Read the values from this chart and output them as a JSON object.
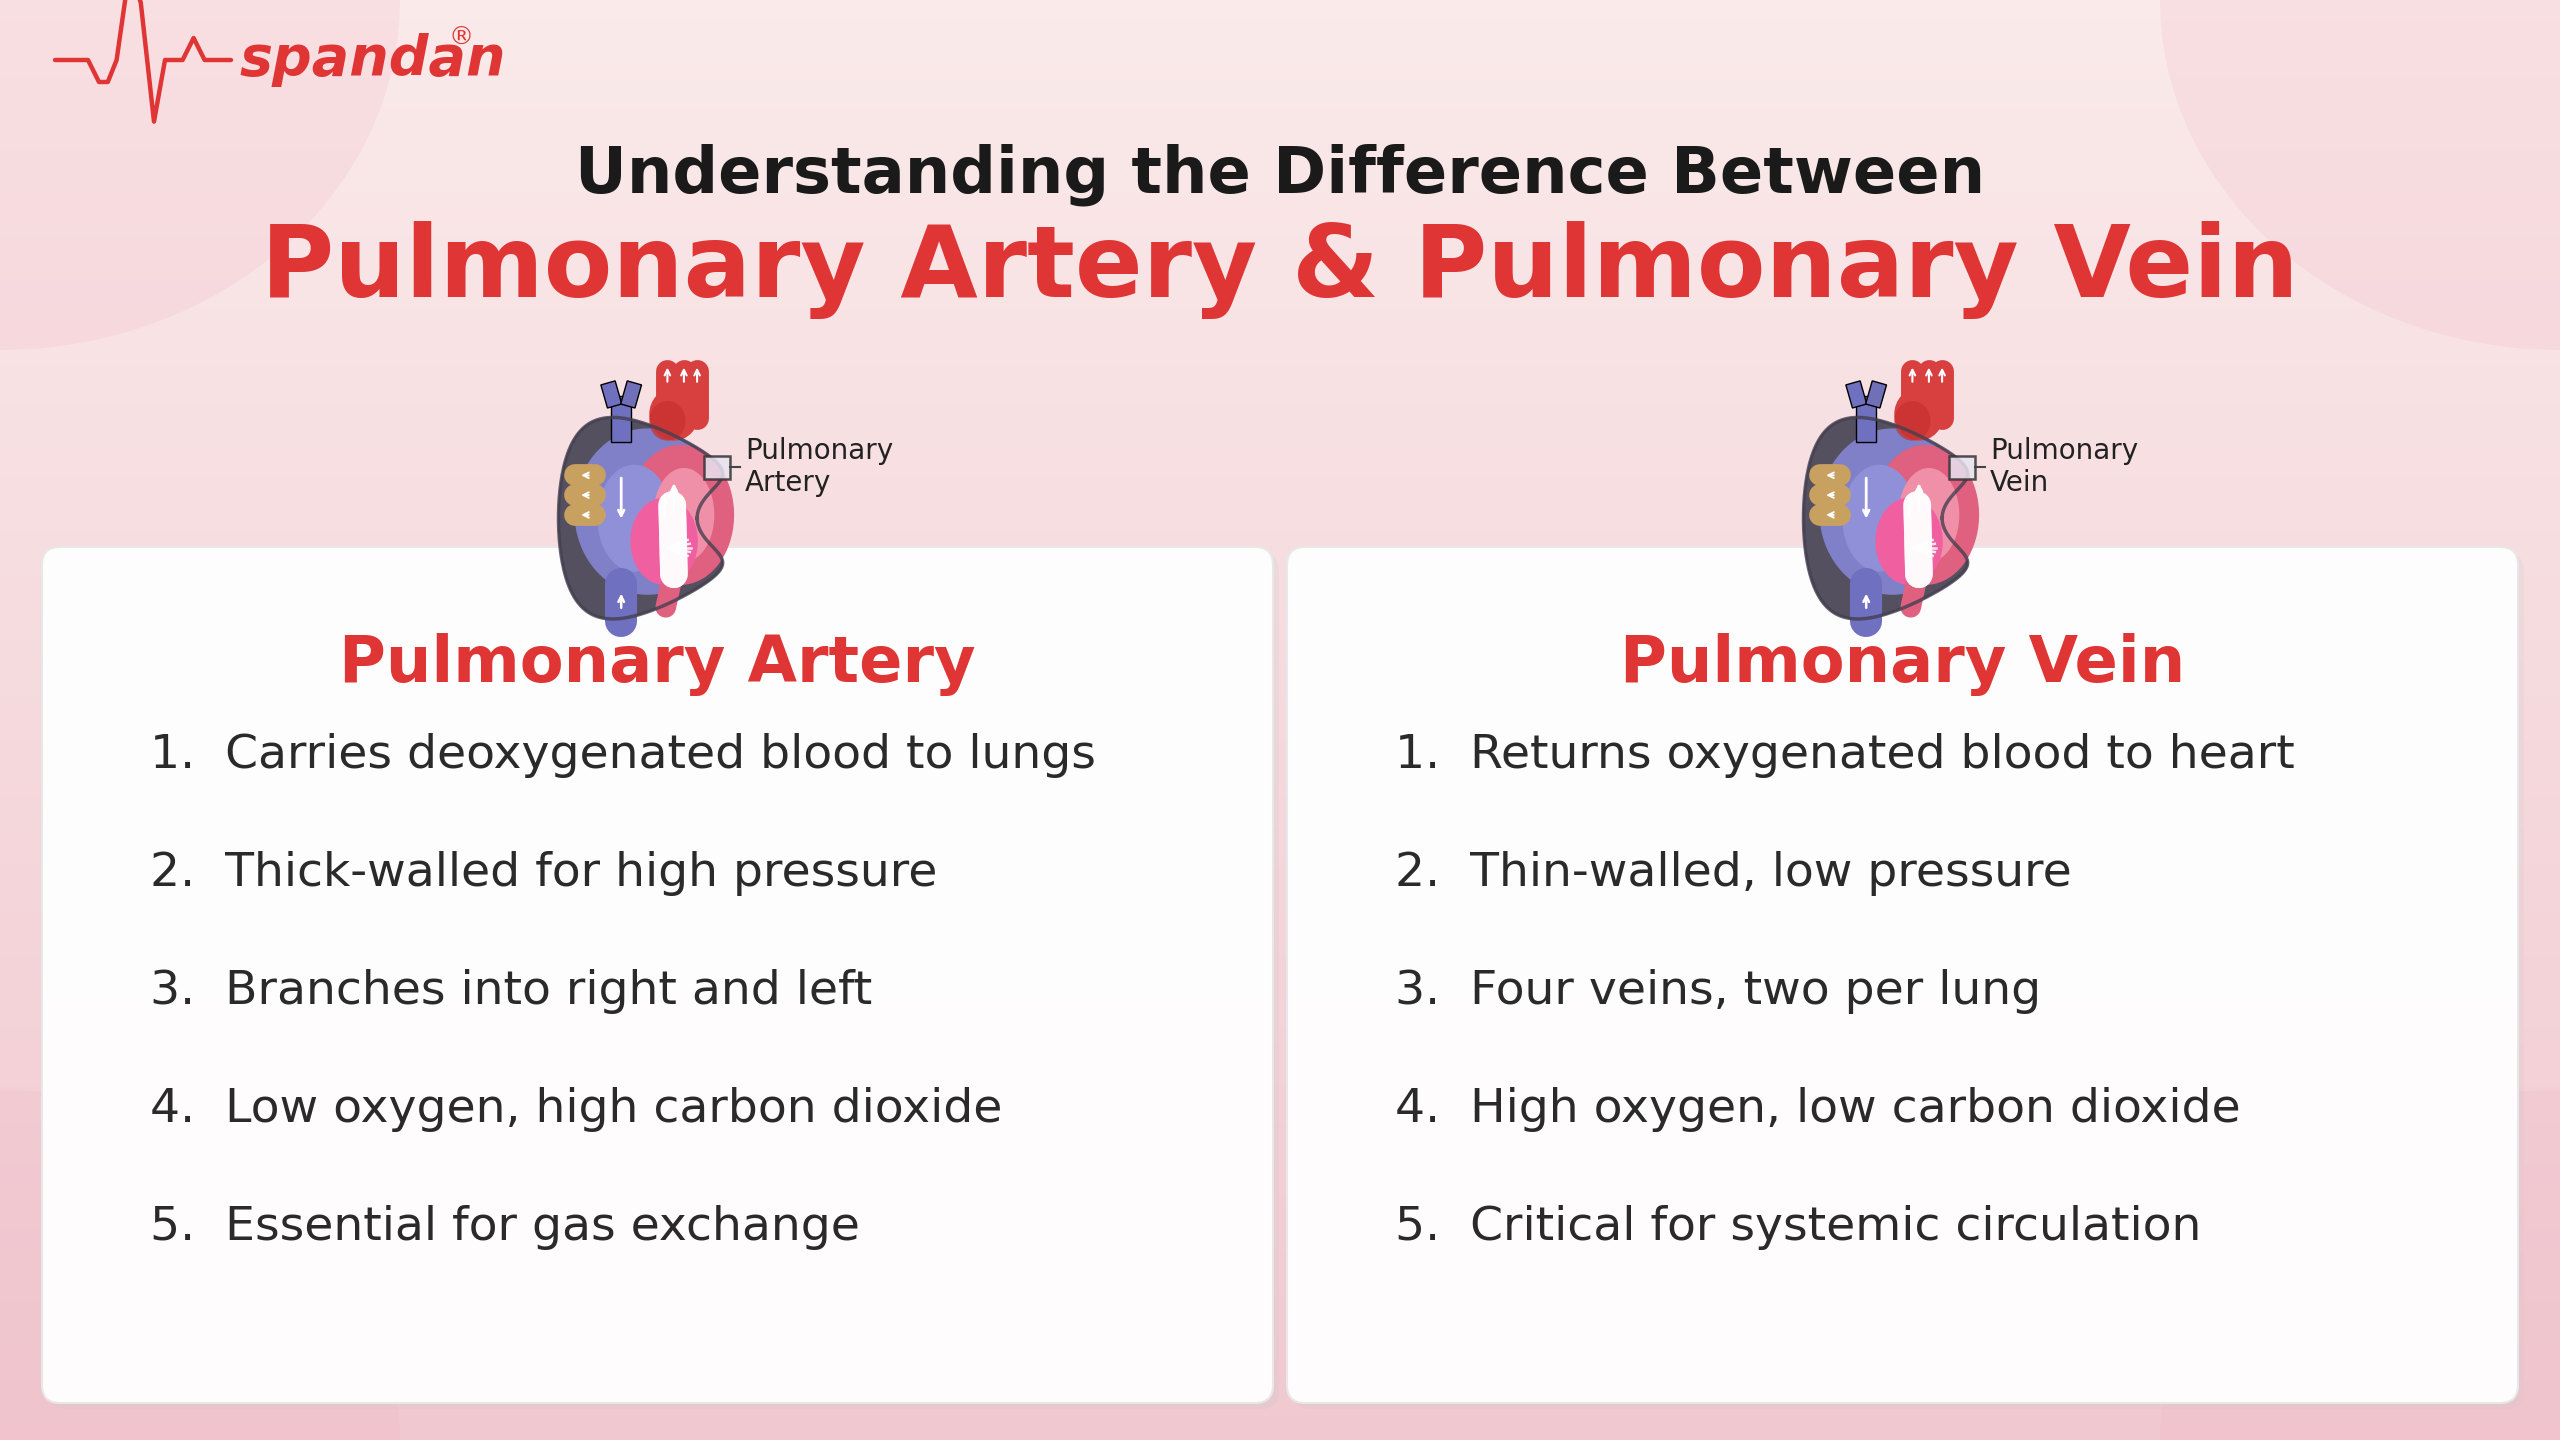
{
  "bg_color_top": "#faeaea",
  "bg_color_bottom": "#f0c8d0",
  "title_line1": "Understanding the Difference Between",
  "title_line2": "Pulmonary Artery & Pulmonary Vein",
  "title_line1_color": "#1a1a1a",
  "title_line2_color": "#e03535",
  "title_line1_fontsize": 46,
  "title_line2_fontsize": 72,
  "logo_color": "#e03535",
  "card_bg": "#ffffff",
  "card_edge": "#e8e8e8",
  "left_card_title": "Pulmonary Artery",
  "right_card_title": "Pulmonary Vein",
  "card_title_color": "#e03535",
  "card_title_fontsize": 46,
  "item_fontsize": 34,
  "item_color": "#2a2a2a",
  "left_items": [
    "1.  Carries deoxygenated blood to lungs",
    "2.  Thick-walled for high pressure",
    "3.  Branches into right and left",
    "4.  Low oxygen, high carbon dioxide",
    "5.  Essential for gas exchange"
  ],
  "right_items": [
    "1.  Returns oxygenated blood to heart",
    "2.  Thin-walled, low pressure",
    "3.  Four veins, two per lung",
    "4.  High oxygen, low carbon dioxide",
    "5.  Critical for systemic circulation"
  ],
  "left_label": "Pulmonary\nArtery",
  "right_label": "Pulmonary\nVein"
}
